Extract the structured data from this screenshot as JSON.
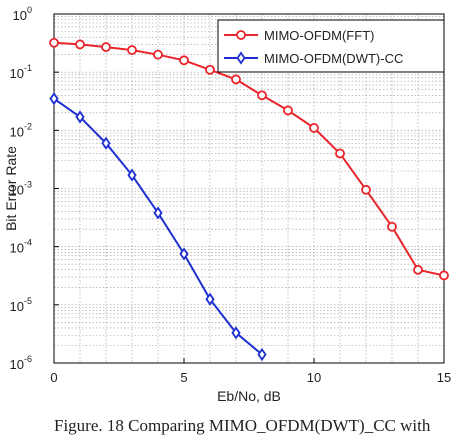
{
  "caption": "Figure. 18 Comparing MIMO_OFDM(DWT)_CC with",
  "chart_data": {
    "type": "line",
    "title": "",
    "xlabel": "Eb/No, dB",
    "ylabel": "Bit Error Rate",
    "xlim": [
      0,
      15
    ],
    "ylim": [
      1e-06,
      1
    ],
    "yscale": "log",
    "grid": true,
    "legend_position": "top-right",
    "xticks": [
      0,
      5,
      10,
      15
    ],
    "xtick_labels": [
      "0",
      "5",
      "10",
      "15"
    ],
    "yticks": [
      1e-06,
      1e-05,
      0.0001,
      0.001,
      0.01,
      0.1,
      1
    ],
    "ytick_exponents": [
      "-6",
      "-5",
      "-4",
      "-3",
      "-2",
      "-1",
      "0"
    ],
    "ytick_base": "10",
    "series": [
      {
        "name": "MIMO-OFDM(FFT)",
        "color": "#e8262c",
        "marker": "circle",
        "x": [
          0,
          1,
          2,
          3,
          4,
          5,
          6,
          7,
          8,
          9,
          10,
          11,
          12,
          13,
          14,
          15
        ],
        "y": [
          0.32,
          0.3,
          0.27,
          0.24,
          0.2,
          0.16,
          0.11,
          0.075,
          0.04,
          0.022,
          0.011,
          0.004,
          0.00095,
          0.00022,
          4e-05,
          3.2e-05
        ]
      },
      {
        "name": "MIMO-OFDM(DWT)-CC",
        "color": "#1d2fd1",
        "marker": "diamond",
        "x": [
          0,
          1,
          2,
          3,
          4,
          5,
          6,
          7,
          8
        ],
        "y": [
          0.035,
          0.017,
          0.006,
          0.0017,
          0.00038,
          7.5e-05,
          1.25e-05,
          3.3e-06,
          1.4e-06
        ]
      }
    ]
  }
}
